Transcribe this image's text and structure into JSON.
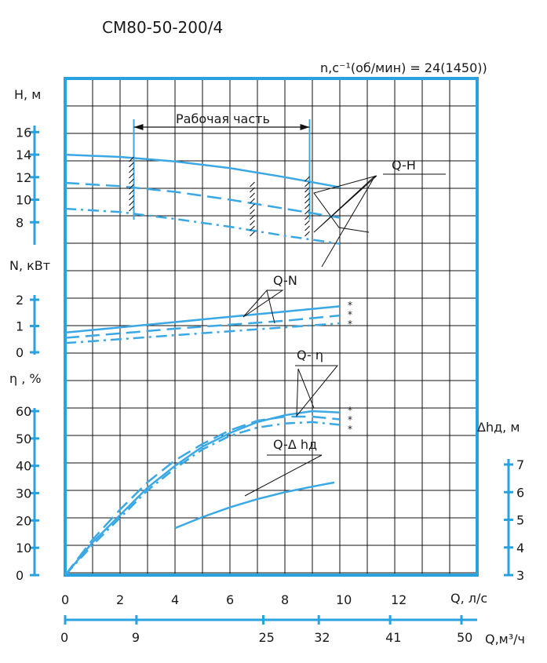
{
  "title": "СМ80-50-200/4",
  "speed_label": "n,c⁻¹(об/мин) = 24(1450))",
  "working_zone_label": "Рабочая часть",
  "colors": {
    "curve": "#3aa8e4",
    "frame": "#29a3e0",
    "grid": "#111111",
    "text": "#1a1a1a"
  },
  "chart_data": {
    "type": "line",
    "grid": true,
    "x_axes": [
      {
        "label": "Q, л/с",
        "min": 0,
        "max": 15,
        "ticks": [
          0,
          2,
          4,
          6,
          8,
          10,
          12
        ]
      },
      {
        "label": "Q,м³/ч",
        "ticks": [
          0,
          9,
          25,
          32,
          41,
          50
        ]
      }
    ],
    "panels": [
      {
        "name": "H",
        "ylabel": "H, м",
        "ylim": [
          6,
          17
        ],
        "yticks": [
          8,
          10,
          12,
          14,
          16
        ]
      },
      {
        "name": "N",
        "ylabel": "N, кВт",
        "ylim": [
          0,
          2
        ],
        "yticks": [
          0,
          1,
          2
        ]
      },
      {
        "name": "eta",
        "ylabel": "η , %",
        "ylim": [
          0,
          60
        ],
        "yticks": [
          0,
          10,
          20,
          30,
          40,
          50,
          60
        ]
      },
      {
        "name": "npsh",
        "ylabel": "Δhд, м",
        "yticks": [
          3,
          4,
          5,
          6,
          7
        ]
      }
    ],
    "working_zone": {
      "q_min": 2.5,
      "q_max": 8.9
    },
    "series": [
      {
        "group": "Q-H",
        "style": "solid",
        "x": [
          0,
          2,
          4,
          6,
          8,
          10
        ],
        "y": [
          14.0,
          13.8,
          13.4,
          12.8,
          12.0,
          11.1
        ]
      },
      {
        "group": "Q-H",
        "style": "dashed",
        "x": [
          0,
          2,
          4,
          6,
          8,
          10
        ],
        "y": [
          11.5,
          11.2,
          10.7,
          10.0,
          9.2,
          8.4
        ]
      },
      {
        "group": "Q-H",
        "style": "dashdot",
        "x": [
          0,
          2,
          4,
          6,
          8,
          10
        ],
        "y": [
          9.2,
          8.9,
          8.3,
          7.6,
          6.8,
          6.1
        ]
      },
      {
        "group": "Q-N",
        "style": "solid",
        "x": [
          0,
          2,
          4,
          6,
          8,
          10
        ],
        "y": [
          0.75,
          0.95,
          1.15,
          1.35,
          1.55,
          1.75
        ]
      },
      {
        "group": "Q-N",
        "style": "dashed",
        "x": [
          0,
          2,
          4,
          6,
          8,
          10
        ],
        "y": [
          0.55,
          0.72,
          0.9,
          1.05,
          1.2,
          1.4
        ]
      },
      {
        "group": "Q-N",
        "style": "dashdot",
        "x": [
          0,
          2,
          4,
          6,
          8,
          10
        ],
        "y": [
          0.35,
          0.5,
          0.65,
          0.8,
          0.95,
          1.1
        ]
      },
      {
        "group": "Q-η",
        "style": "solid",
        "x": [
          0,
          1,
          2,
          3,
          4,
          5,
          6,
          7,
          8,
          9,
          10
        ],
        "y": [
          0,
          12,
          22,
          32,
          40,
          47,
          52,
          56,
          58.5,
          60,
          59.5
        ]
      },
      {
        "group": "Q-η",
        "style": "dashed",
        "x": [
          0,
          1,
          2,
          3,
          4,
          5,
          6,
          7,
          8,
          9,
          10
        ],
        "y": [
          0,
          13,
          24,
          34,
          42,
          48,
          53,
          56.5,
          58,
          58,
          57
        ]
      },
      {
        "group": "Q-η",
        "style": "dashdot",
        "x": [
          0,
          1,
          2,
          3,
          4,
          5,
          6,
          7,
          8,
          9,
          10
        ],
        "y": [
          0,
          11,
          21,
          31,
          39,
          46,
          51,
          54,
          55.5,
          56,
          55
        ]
      },
      {
        "group": "Q-Δhд",
        "style": "solid",
        "x": [
          4,
          5,
          6,
          7,
          8,
          9,
          9.8
        ],
        "y": [
          4.7,
          5.1,
          5.45,
          5.75,
          6.0,
          6.2,
          6.35
        ]
      }
    ],
    "curve_labels": [
      "Q-H",
      "Q-N",
      "Q- η",
      "Q-Δ hд"
    ],
    "end_marks": [
      "*",
      "*",
      "*"
    ]
  }
}
